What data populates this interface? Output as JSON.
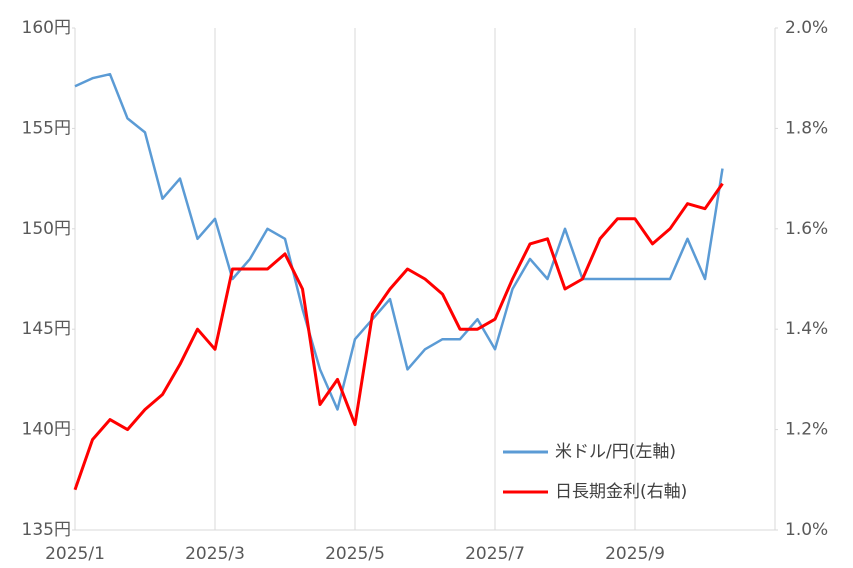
{
  "chart_data": {
    "type": "line",
    "categories": [
      "2025/1",
      null,
      null,
      null,
      null,
      null,
      null,
      null,
      "2025/3",
      null,
      null,
      null,
      null,
      null,
      null,
      null,
      "2025/5",
      null,
      null,
      null,
      null,
      null,
      null,
      null,
      "2025/7",
      null,
      null,
      null,
      null,
      null,
      null,
      null,
      "2025/9",
      null,
      null,
      null,
      null,
      null
    ],
    "series": [
      {
        "name": "米ドル/円(左軸)",
        "color": "#5b9bd5",
        "axis": "y",
        "values": [
          157.1,
          157.5,
          157.7,
          155.5,
          154.8,
          151.5,
          152.5,
          149.5,
          150.5,
          147.5,
          148.5,
          150.0,
          149.5,
          146.0,
          143.0,
          141.0,
          144.5,
          145.5,
          146.5,
          143.0,
          144.0,
          144.5,
          144.5,
          145.5,
          144.0,
          147.0,
          148.5,
          147.5,
          150.0,
          147.5,
          147.5,
          147.5,
          147.5,
          147.5,
          147.5,
          149.5,
          147.5,
          153.0
        ]
      },
      {
        "name": "日長期金利(右軸)",
        "color": "#ff0000",
        "axis": "y2",
        "values": [
          1.08,
          1.18,
          1.22,
          1.2,
          1.24,
          1.27,
          1.33,
          1.4,
          1.36,
          1.52,
          1.52,
          1.52,
          1.55,
          1.48,
          1.25,
          1.3,
          1.21,
          1.43,
          1.48,
          1.52,
          1.5,
          1.47,
          1.4,
          1.4,
          1.42,
          1.5,
          1.57,
          1.58,
          1.48,
          1.5,
          1.58,
          1.62,
          1.62,
          1.57,
          1.6,
          1.65,
          1.64,
          1.69
        ]
      }
    ],
    "ylim": [
      135,
      160
    ],
    "yticks": [
      {
        "value": 135,
        "label": "135円"
      },
      {
        "value": 140,
        "label": "140円"
      },
      {
        "value": 145,
        "label": "145円"
      },
      {
        "value": 150,
        "label": "150円"
      },
      {
        "value": 155,
        "label": "155円"
      },
      {
        "value": 160,
        "label": "160円"
      }
    ],
    "y2lim": [
      1.0,
      2.0
    ],
    "y2ticks": [
      {
        "value": 1.0,
        "label": "1.0%"
      },
      {
        "value": 1.2,
        "label": "1.2%"
      },
      {
        "value": 1.4,
        "label": "1.4%"
      },
      {
        "value": 1.6,
        "label": "1.6%"
      },
      {
        "value": 1.8,
        "label": "1.8%"
      },
      {
        "value": 2.0,
        "label": "2.0%"
      }
    ],
    "legend": "lower right"
  }
}
